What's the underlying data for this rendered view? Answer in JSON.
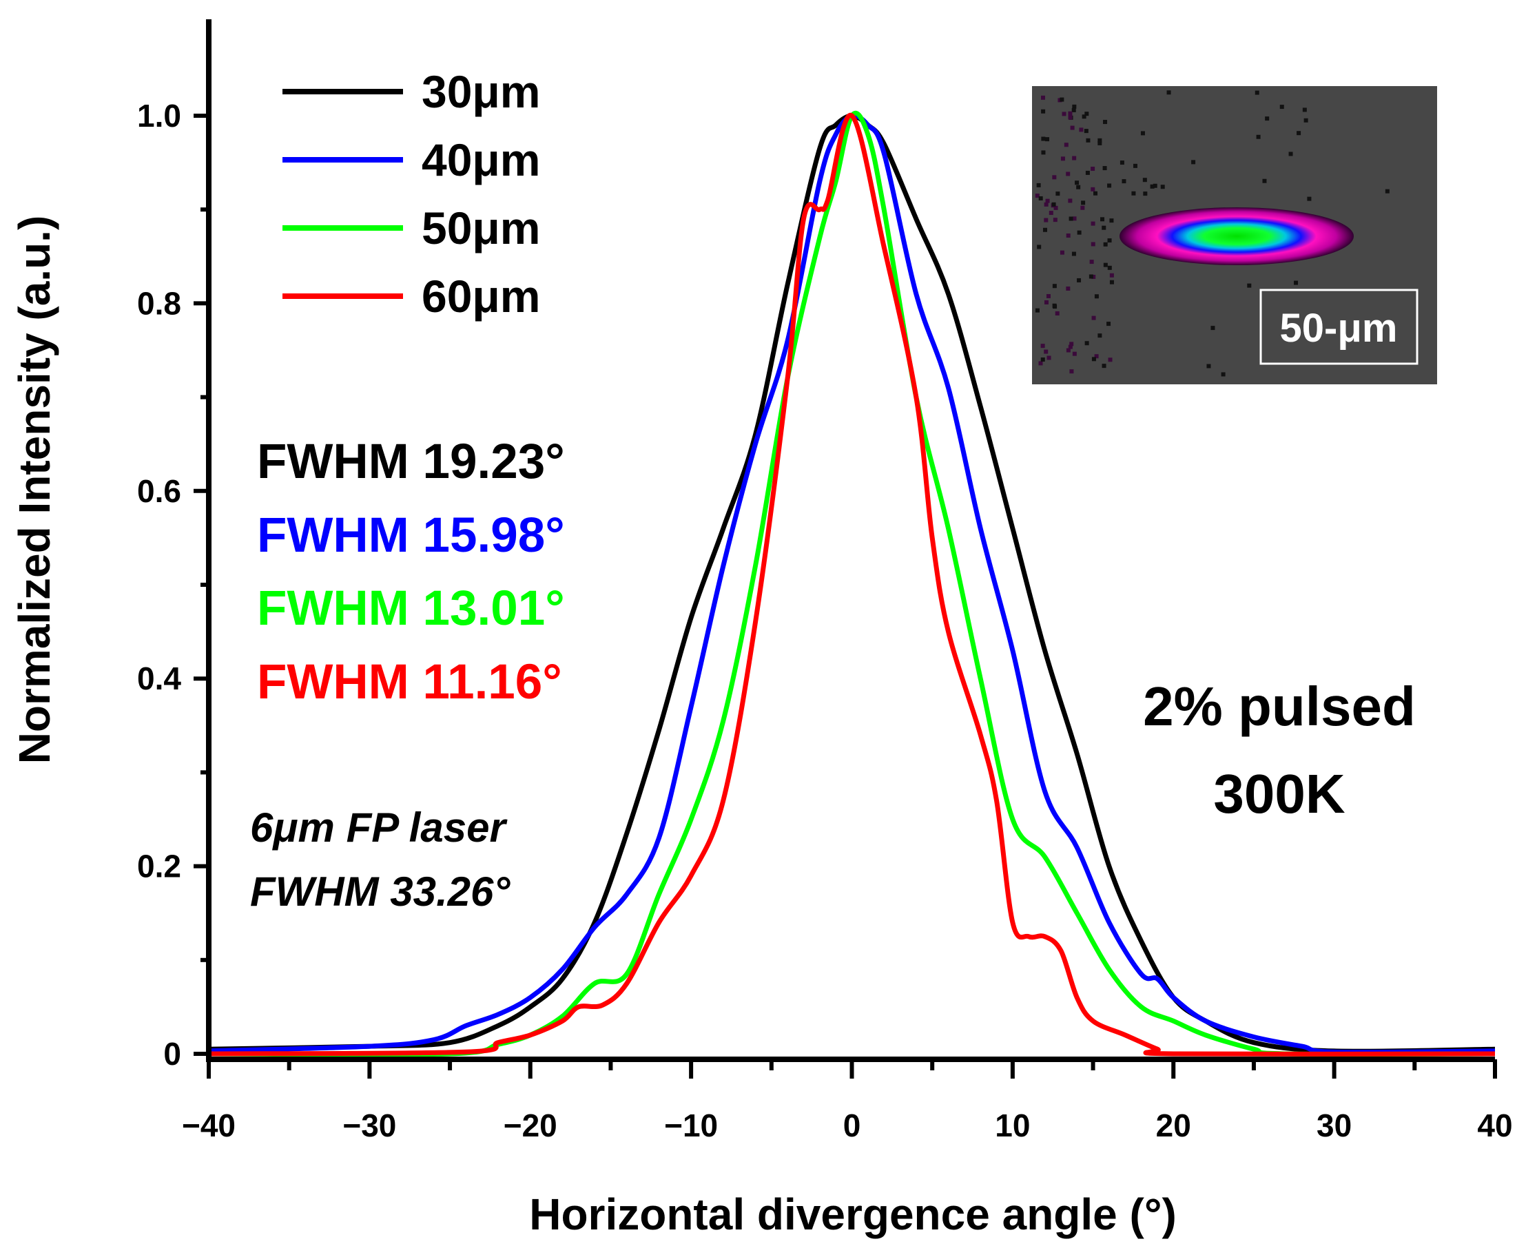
{
  "chart_data": {
    "type": "line",
    "title": "",
    "xlabel": "Horizontal divergence angle (°)",
    "ylabel": "Normalized Intensity (a.u.)",
    "xlim": [
      -40,
      40
    ],
    "ylim": [
      0,
      1.1
    ],
    "xticks": [
      -40,
      -30,
      -20,
      -10,
      0,
      10,
      20,
      30,
      40
    ],
    "xtick_labels": [
      "−40",
      "−30",
      "−20",
      "−10",
      "0",
      "10",
      "20",
      "30",
      "40"
    ],
    "yticks": [
      0,
      0.2,
      0.4,
      0.6,
      0.8,
      1.0
    ],
    "ytick_labels": [
      "0",
      "0.2",
      "0.4",
      "0.6",
      "0.8",
      "1.0"
    ],
    "grid": false,
    "legend_position": "top-left",
    "series": [
      {
        "name": "30μm",
        "color": "#000000",
        "x": [
          -40,
          -30,
          -25,
          -22,
          -20,
          -18,
          -16,
          -14,
          -12,
          -10,
          -8,
          -6,
          -4,
          -2,
          -1,
          0,
          1,
          2,
          4,
          6,
          8,
          10,
          12,
          14,
          16,
          18,
          20,
          22,
          25,
          30,
          40
        ],
        "y": [
          0.005,
          0.008,
          0.012,
          0.03,
          0.05,
          0.08,
          0.14,
          0.235,
          0.345,
          0.465,
          0.56,
          0.66,
          0.82,
          0.965,
          0.99,
          1.0,
          0.99,
          0.97,
          0.89,
          0.81,
          0.69,
          0.56,
          0.43,
          0.32,
          0.2,
          0.12,
          0.06,
          0.035,
          0.012,
          0.003,
          0.005
        ]
      },
      {
        "name": "40μm",
        "color": "#0000ff",
        "x": [
          -40,
          -30,
          -26,
          -24,
          -22,
          -20,
          -18,
          -16,
          -14,
          -12,
          -10,
          -8,
          -6,
          -4,
          -2,
          -1,
          0,
          1,
          2,
          4,
          6,
          8,
          10,
          12,
          14,
          16,
          18,
          19,
          20,
          22,
          25,
          28,
          30,
          40
        ],
        "y": [
          0.003,
          0.008,
          0.015,
          0.03,
          0.042,
          0.06,
          0.09,
          0.135,
          0.17,
          0.23,
          0.37,
          0.52,
          0.65,
          0.76,
          0.93,
          0.98,
          1.0,
          0.99,
          0.96,
          0.81,
          0.71,
          0.56,
          0.43,
          0.28,
          0.22,
          0.14,
          0.085,
          0.08,
          0.06,
          0.035,
          0.018,
          0.008,
          0.002,
          0.003
        ]
      },
      {
        "name": "50μm",
        "color": "#00ff00",
        "x": [
          -40,
          -25,
          -22,
          -20,
          -18,
          -16,
          -14,
          -12,
          -10,
          -8,
          -6,
          -4,
          -2,
          -1,
          0,
          1,
          2,
          4,
          6,
          8,
          10,
          12,
          14,
          16,
          18,
          20,
          22,
          25,
          27,
          40
        ],
        "y": [
          0,
          0,
          0.01,
          0.02,
          0.04,
          0.075,
          0.085,
          0.17,
          0.25,
          0.355,
          0.52,
          0.72,
          0.87,
          0.93,
          1.0,
          0.98,
          0.9,
          0.7,
          0.56,
          0.4,
          0.25,
          0.21,
          0.15,
          0.09,
          0.05,
          0.035,
          0.02,
          0.005,
          0,
          0
        ]
      },
      {
        "name": "60μm",
        "color": "#ff0000",
        "x": [
          -40,
          -24,
          -22,
          -20,
          -18,
          -17,
          -15.5,
          -14,
          -12,
          -10,
          -8,
          -6,
          -4,
          -3,
          -2,
          -1.5,
          0,
          2,
          4,
          5,
          6,
          8,
          9,
          10,
          11,
          12,
          13,
          14,
          15,
          17,
          19,
          20,
          40
        ],
        "y": [
          0,
          0.002,
          0.012,
          0.02,
          0.035,
          0.05,
          0.052,
          0.075,
          0.14,
          0.19,
          0.27,
          0.46,
          0.72,
          0.89,
          0.9,
          0.91,
          1.0,
          0.86,
          0.7,
          0.55,
          0.45,
          0.34,
          0.27,
          0.14,
          0.125,
          0.125,
          0.11,
          0.06,
          0.035,
          0.02,
          0.005,
          0,
          0
        ]
      }
    ],
    "annotations": {
      "fwhm": [
        {
          "text": "FWHM 19.23°",
          "color": "#000000"
        },
        {
          "text": "FWHM 15.98°",
          "color": "#0000ff"
        },
        {
          "text": "FWHM 13.01°",
          "color": "#00ff00"
        },
        {
          "text": "FWHM 11.16°",
          "color": "#ff0000"
        }
      ],
      "reference_line1": "6μm FP laser",
      "reference_line2": "FWHM 33.26°",
      "condition_line1": "2% pulsed",
      "condition_line2": "300K",
      "inset_label": "50-μm"
    }
  }
}
